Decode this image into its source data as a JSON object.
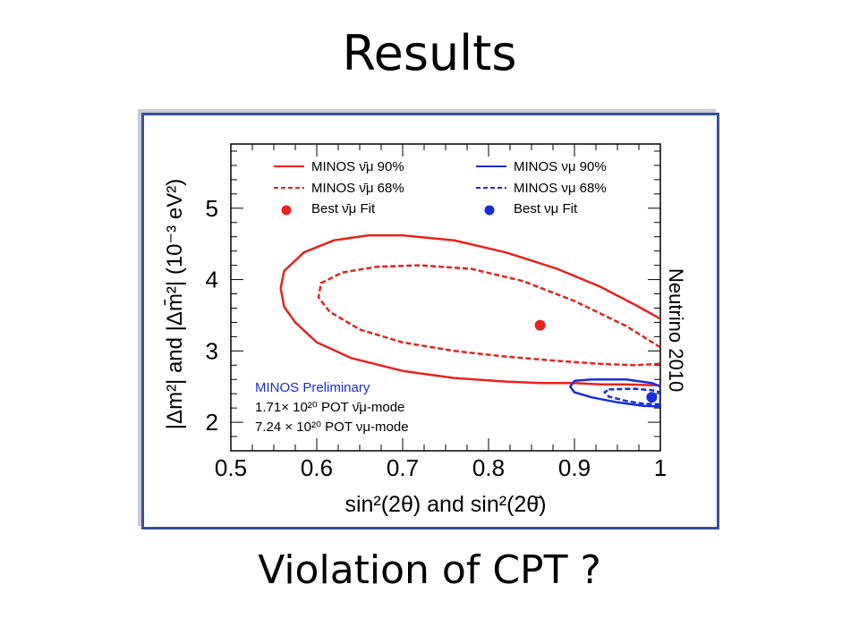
{
  "slide": {
    "title": "Results",
    "subtitle": "Violation of CPT ?"
  },
  "chart_data": {
    "type": "contour",
    "xlabel": "sin²(2θ) and sin²(2θ̄)",
    "ylabel": "|Δm²| and |Δm̄²| (10⁻³ eV²)",
    "xlim": [
      0.5,
      1.0
    ],
    "ylim": [
      1.6,
      5.9
    ],
    "x_ticks": [
      "0.5",
      "0.6",
      "0.7",
      "0.8",
      "0.9",
      "1"
    ],
    "y_ticks": [
      "2",
      "3",
      "4",
      "5"
    ],
    "legend": [
      {
        "label": "MINOS ν̄μ 90%",
        "color": "#e8221e",
        "style": "solid"
      },
      {
        "label": "MINOS ν̄μ 68%",
        "color": "#e8221e",
        "style": "dashed"
      },
      {
        "label": "Best ν̄μ Fit",
        "color": "#e8221e",
        "style": "marker"
      },
      {
        "label": "MINOS νμ 90%",
        "color": "#1a2ed8",
        "style": "solid"
      },
      {
        "label": "MINOS νμ 68%",
        "color": "#1a2ed8",
        "style": "dashed"
      },
      {
        "label": "Best νμ Fit",
        "color": "#1a2ed8",
        "style": "marker"
      }
    ],
    "annotation": {
      "title": "MINOS Preliminary",
      "lines": [
        "1.71× 10²⁰ POT ν̄μ-mode",
        "7.24 × 10²⁰ POT νμ-mode"
      ],
      "side_text": "Neutrino 2010"
    },
    "series": [
      {
        "name": "MINOS ν̄μ 90%",
        "color": "#e8221e",
        "dashed": false,
        "closed": false,
        "points": [
          [
            1.0,
            3.45
          ],
          [
            0.97,
            3.65
          ],
          [
            0.93,
            3.9
          ],
          [
            0.88,
            4.15
          ],
          [
            0.82,
            4.38
          ],
          [
            0.76,
            4.55
          ],
          [
            0.7,
            4.62
          ],
          [
            0.66,
            4.62
          ],
          [
            0.62,
            4.55
          ],
          [
            0.585,
            4.38
          ],
          [
            0.562,
            4.12
          ],
          [
            0.558,
            3.88
          ],
          [
            0.562,
            3.62
          ],
          [
            0.575,
            3.4
          ],
          [
            0.6,
            3.12
          ],
          [
            0.64,
            2.9
          ],
          [
            0.7,
            2.72
          ],
          [
            0.76,
            2.62
          ],
          [
            0.82,
            2.57
          ],
          [
            0.86,
            2.55
          ],
          [
            0.9,
            2.55
          ],
          [
            0.93,
            2.53
          ],
          [
            0.96,
            2.53
          ],
          [
            0.99,
            2.52
          ],
          [
            1.0,
            2.52
          ]
        ]
      },
      {
        "name": "MINOS ν̄μ 68%",
        "color": "#e8221e",
        "dashed": true,
        "closed": false,
        "points": [
          [
            1.0,
            3.05
          ],
          [
            0.96,
            3.35
          ],
          [
            0.9,
            3.7
          ],
          [
            0.84,
            3.98
          ],
          [
            0.78,
            4.15
          ],
          [
            0.72,
            4.2
          ],
          [
            0.67,
            4.18
          ],
          [
            0.63,
            4.1
          ],
          [
            0.605,
            3.95
          ],
          [
            0.602,
            3.75
          ],
          [
            0.615,
            3.55
          ],
          [
            0.65,
            3.3
          ],
          [
            0.7,
            3.12
          ],
          [
            0.76,
            3.0
          ],
          [
            0.82,
            2.92
          ],
          [
            0.88,
            2.86
          ],
          [
            0.93,
            2.82
          ],
          [
            0.97,
            2.8
          ],
          [
            1.0,
            2.82
          ]
        ]
      },
      {
        "name": "MINOS νμ 90%",
        "color": "#1a2ed8",
        "dashed": false,
        "closed": true,
        "points": [
          [
            0.9,
            2.58
          ],
          [
            0.92,
            2.6
          ],
          [
            0.96,
            2.6
          ],
          [
            0.99,
            2.55
          ],
          [
            1.0,
            2.5
          ],
          [
            1.0,
            2.22
          ],
          [
            0.98,
            2.23
          ],
          [
            0.95,
            2.28
          ],
          [
            0.92,
            2.35
          ],
          [
            0.9,
            2.42
          ],
          [
            0.895,
            2.5
          ]
        ]
      },
      {
        "name": "MINOS νμ 68%",
        "color": "#1a2ed8",
        "dashed": true,
        "closed": true,
        "points": [
          [
            0.94,
            2.46
          ],
          [
            0.97,
            2.47
          ],
          [
            0.99,
            2.45
          ],
          [
            1.0,
            2.42
          ],
          [
            1.0,
            2.25
          ],
          [
            0.98,
            2.26
          ],
          [
            0.96,
            2.3
          ],
          [
            0.94,
            2.36
          ],
          [
            0.935,
            2.42
          ]
        ]
      }
    ],
    "best_fits": [
      {
        "name": "Best ν̄μ Fit",
        "x": 0.86,
        "y": 3.36,
        "color": "#e8221e"
      },
      {
        "name": "Best νμ Fit",
        "x": 0.99,
        "y": 2.35,
        "color": "#1a2ed8"
      }
    ]
  }
}
